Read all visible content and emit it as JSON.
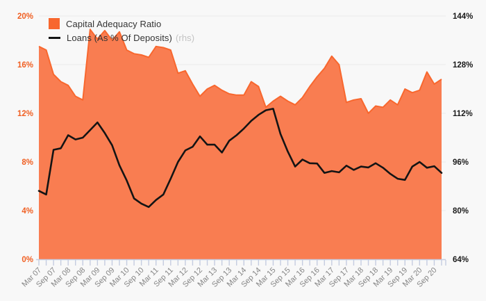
{
  "legend": {
    "items": [
      {
        "label": "Capital Adequacy Ratio",
        "type": "area"
      },
      {
        "label": "Loans (As % Of Deposits)",
        "suffix": "(rhs)",
        "type": "line"
      }
    ]
  },
  "axes": {
    "left": {
      "ticks": [
        "20%",
        "16%",
        "12%",
        "8%",
        "4%",
        "0%"
      ],
      "color": "#F05F22"
    },
    "right": {
      "ticks": [
        "144%",
        "128%",
        "112%",
        "96%",
        "80%",
        "64%"
      ],
      "color": "#1a1a1a"
    },
    "x": {
      "label_every_n_points": 2,
      "color": "#858585"
    }
  },
  "chart_data": {
    "type": "area+line",
    "title": "",
    "x": [
      "Mar 07",
      "Jun 07",
      "Sep 07",
      "Dec 07",
      "Mar 08",
      "Jun 08",
      "Sep 08",
      "Dec 08",
      "Mar 09",
      "Jun 09",
      "Sep 09",
      "Dec 09",
      "Mar 10",
      "Jun 10",
      "Sep 10",
      "Dec 10",
      "Mar 11",
      "Jun 11",
      "Sep 11",
      "Dec 11",
      "Mar 12",
      "Jun 12",
      "Sep 12",
      "Dec 12",
      "Mar 13",
      "Jun 13",
      "Sep 13",
      "Dec 13",
      "Mar 14",
      "Jun 14",
      "Sep 14",
      "Dec 14",
      "Mar 15",
      "Jun 15",
      "Sep 15",
      "Dec 15",
      "Mar 16",
      "Jun 16",
      "Sep 16",
      "Dec 16",
      "Mar 17",
      "Jun 17",
      "Sep 17",
      "Dec 17",
      "Mar 18",
      "Jun 18",
      "Sep 18",
      "Dec 18",
      "Mar 19",
      "Jun 19",
      "Sep 19",
      "Dec 19",
      "Mar 20",
      "Jun 20",
      "Sep 20",
      "Dec 20"
    ],
    "x_tick_labels": [
      "Mar 07",
      "Sep 07",
      "Mar 08",
      "Sep 08",
      "Mar 09",
      "Sep 09",
      "Mar 10",
      "Sep 10",
      "Mar 11",
      "Sep 11",
      "Mar 12",
      "Sep 12",
      "Mar 13",
      "Sep 13",
      "Mar 14",
      "Sep 14",
      "Mar 15",
      "Sep 15",
      "Mar 16",
      "Sep 16",
      "Mar 17",
      "Sep 17",
      "Mar 18",
      "Sep 18",
      "Mar 19",
      "Sep 19",
      "Mar 20",
      "Sep 20"
    ],
    "series": [
      {
        "name": "Capital Adequacy Ratio",
        "type": "area",
        "axis": "left",
        "fill": "#F97D51",
        "stroke": "#F8672E",
        "values": [
          17.5,
          17.2,
          15.2,
          14.6,
          14.3,
          13.4,
          13.1,
          18.9,
          18.1,
          18.8,
          18.0,
          18.7,
          17.2,
          16.9,
          16.8,
          16.6,
          17.5,
          17.4,
          17.2,
          15.3,
          15.5,
          14.4,
          13.4,
          14.0,
          14.3,
          13.9,
          13.6,
          13.5,
          13.5,
          14.6,
          14.2,
          12.5,
          13.0,
          13.4,
          13.0,
          12.7,
          13.3,
          14.2,
          15.0,
          15.7,
          16.7,
          16.0,
          12.9,
          13.1,
          13.2,
          12.0,
          12.6,
          12.5,
          13.1,
          12.7,
          14.0,
          13.7,
          13.9,
          15.4,
          14.4,
          14.8
        ]
      },
      {
        "name": "Loans (As % Of Deposits)",
        "type": "line",
        "axis": "right",
        "stroke": "#141414",
        "values": [
          86.5,
          85.3,
          100.0,
          100.5,
          104.8,
          103.4,
          104.0,
          106.5,
          109.0,
          105.5,
          101.5,
          94.9,
          89.9,
          84.0,
          82.3,
          81.2,
          83.5,
          85.3,
          90.5,
          96.0,
          99.8,
          101.0,
          104.4,
          101.7,
          101.7,
          99.1,
          103.0,
          104.8,
          107.0,
          109.5,
          111.5,
          113.0,
          113.5,
          105.2,
          99.4,
          94.5,
          96.8,
          95.6,
          95.5,
          92.4,
          93.0,
          92.6,
          94.8,
          93.4,
          94.5,
          94.2,
          95.6,
          94.1,
          92.1,
          90.5,
          90.1,
          94.5,
          96.0,
          94.1,
          94.6,
          92.4
        ]
      }
    ],
    "ylim_left": [
      0,
      20
    ],
    "ylim_right": [
      64,
      144
    ],
    "grid": true,
    "legend_position": "top-left"
  },
  "colors": {
    "background": "#f8f8f8",
    "gridline": "#eaeaea",
    "axis_tick": "#c5cce0"
  }
}
